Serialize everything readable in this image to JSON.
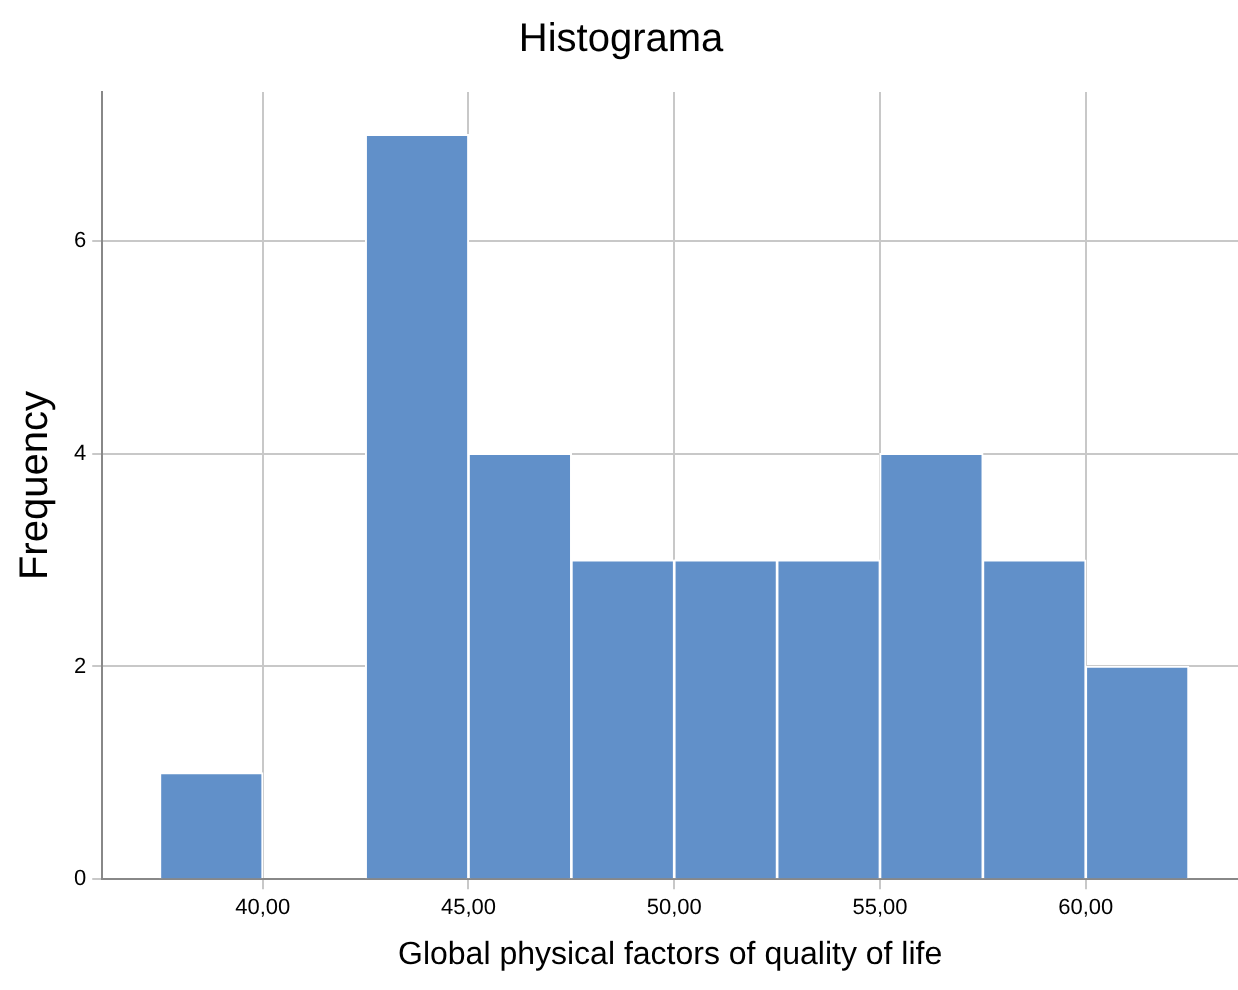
{
  "chart_data": {
    "type": "histogram",
    "title": "Histograma",
    "xlabel": "Global physical factors of quality of life",
    "ylabel": "Frequency",
    "bins": [
      37.5,
      40,
      42.5,
      45,
      47.5,
      50,
      52.5,
      55,
      57.5,
      60,
      62.5
    ],
    "values": [
      1,
      0,
      7,
      4,
      3,
      3,
      3,
      4,
      3,
      2
    ],
    "color": "#6190c9",
    "xlim": [
      36.1,
      63.7
    ],
    "ylim": [
      0,
      7.4
    ],
    "xticks": [
      {
        "value": 40,
        "label": "40,00"
      },
      {
        "value": 45,
        "label": "45,00"
      },
      {
        "value": 50,
        "label": "50,00"
      },
      {
        "value": 55,
        "label": "55,00"
      },
      {
        "value": 60,
        "label": "60,00"
      }
    ],
    "yticks": [
      0,
      2,
      4,
      6
    ],
    "grid": true
  }
}
